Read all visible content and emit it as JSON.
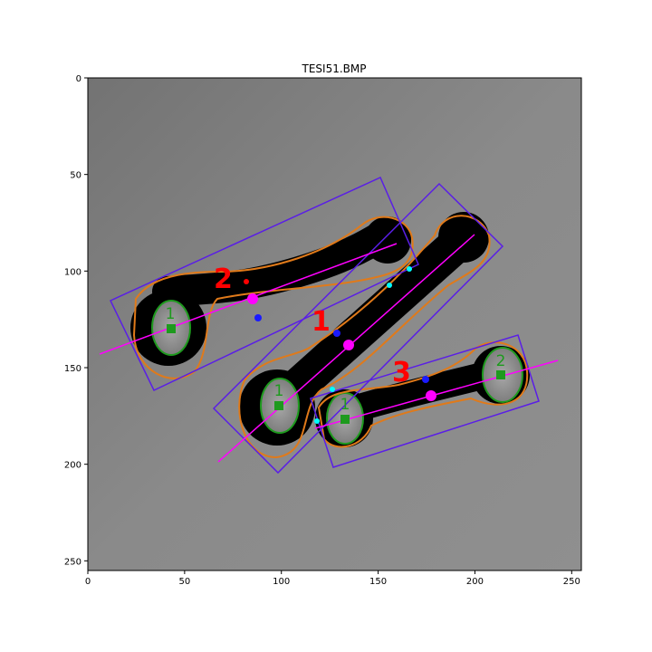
{
  "title": "TESI51.BMP",
  "axes": {
    "x_ticks": [
      0,
      50,
      100,
      150,
      200,
      250
    ],
    "y_ticks": [
      0,
      50,
      100,
      150,
      200,
      250
    ],
    "x_range": [
      0,
      255
    ],
    "y_range": [
      0,
      255
    ],
    "y_inverted": true
  },
  "labels": {
    "part_1": "1",
    "part_2": "2",
    "part_3": "3",
    "hole_a": "1",
    "hole_b": "1",
    "hole_c": "1",
    "hole_d": "2"
  },
  "colors": {
    "bounding_box": "#5a1ee6",
    "axis_line": "#ff00ff",
    "part_label": "#ff0000",
    "contour": "#e07a1a",
    "hole": "#1e9a1e",
    "marker_blue": "#1a1aff",
    "marker_cyan": "#00ffff"
  }
}
